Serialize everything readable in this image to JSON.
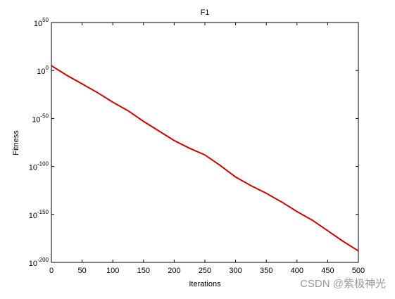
{
  "chart_data": {
    "type": "line",
    "title": "F1",
    "x_label": "Iterations",
    "y_label": "Fitness",
    "log_scale_y": true,
    "grid": false,
    "x": [
      0,
      25,
      50,
      75,
      100,
      125,
      150,
      175,
      200,
      225,
      250,
      275,
      300,
      325,
      350,
      375,
      400,
      425,
      450,
      475,
      500
    ],
    "series": [
      {
        "color": "#cc0000",
        "values": [
          100000.0,
          1e-05,
          1e-14,
          1e-23,
          1e-33,
          1e-42,
          1e-53,
          1e-63,
          1e-73,
          1e-81,
          1e-88,
          1e-99,
          1e-111,
          1e-120,
          1e-128,
          1e-137,
          1e-147,
          1e-156,
          1e-167,
          1e-178,
          1e-188
        ]
      }
    ],
    "xlim": [
      0,
      500
    ],
    "xticks": [
      0,
      50,
      100,
      150,
      200,
      250,
      300,
      350,
      400,
      450,
      500
    ],
    "ylim": [
      1e-200,
      1e+50
    ],
    "yticks": [
      {
        "value": 1e-200,
        "label": "10",
        "exponent": "-200"
      },
      {
        "value": 1e-150,
        "label": "10",
        "exponent": "-150"
      },
      {
        "value": 1e-100,
        "label": "10",
        "exponent": "-100"
      },
      {
        "value": 1e-50,
        "label": "10",
        "exponent": "-50"
      },
      {
        "value": 1,
        "label": "10",
        "exponent": "0"
      },
      {
        "value": 1e+50,
        "label": "10",
        "exponent": "50"
      }
    ]
  },
  "watermark": "CSDN @紫极神光"
}
